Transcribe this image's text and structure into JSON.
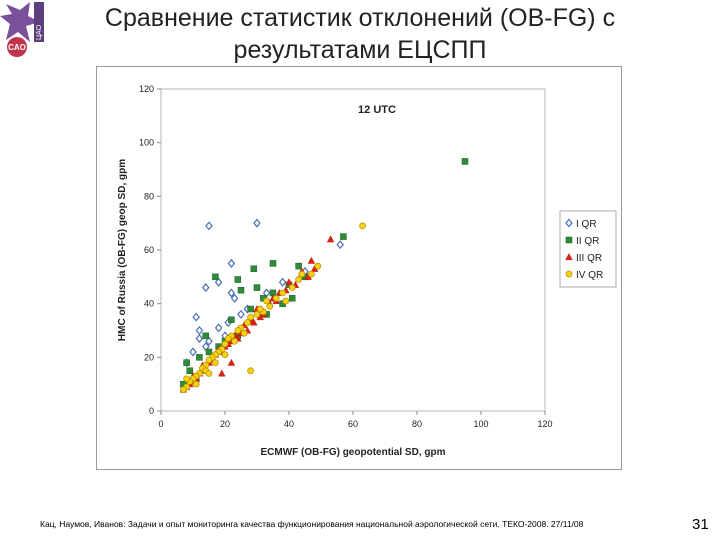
{
  "slide": {
    "title_line1": "Сравнение статистик отклонений (OB-FG) с",
    "title_line2": "результатами ЕЦСПП",
    "logo_text": "CAO",
    "logo_side_text": "ЦАО",
    "footer": "Кац, Наумов, Иванов: Задачи и опыт мониторинга качества функционирования национальной аэрологической сети. ТЕКО-2008. 27/11/08",
    "page_number": "31"
  },
  "colors": {
    "series_I": "#4a6fb8",
    "series_II": "#2e8b3a",
    "series_III": "#e02010",
    "series_IV": "#f2d214",
    "logo_primary": "#7a4f9c",
    "logo_accent": "#c0334d"
  },
  "chart_data": {
    "type": "scatter",
    "title": "12 UTC",
    "xlabel": "ECMWF (OB-FG) geopotential SD, gpm",
    "ylabel": "HMC of Russia (OB-FG) geop SD, gpm",
    "xlim": [
      0,
      120
    ],
    "ylim": [
      0,
      120
    ],
    "xticks": [
      "0",
      "20",
      "40",
      "60",
      "80",
      "100",
      "120"
    ],
    "yticks": [
      "0",
      "20",
      "40",
      "60",
      "80",
      "100",
      "120"
    ],
    "grid": false,
    "legend_position": "right",
    "series": [
      {
        "name": "I QR",
        "marker": "diamond",
        "color": "#4a6fb8",
        "points": [
          [
            15,
            69
          ],
          [
            30,
            70
          ],
          [
            22,
            55
          ],
          [
            14,
            46
          ],
          [
            18,
            48
          ],
          [
            22,
            44
          ],
          [
            11,
            35
          ],
          [
            12,
            30
          ],
          [
            15,
            26
          ],
          [
            18,
            31
          ],
          [
            20,
            28
          ],
          [
            25,
            36
          ],
          [
            27,
            38
          ],
          [
            33,
            44
          ],
          [
            38,
            48
          ],
          [
            45,
            52
          ],
          [
            56,
            62
          ],
          [
            10,
            22
          ],
          [
            14,
            24
          ],
          [
            23,
            42
          ],
          [
            21,
            33
          ],
          [
            28,
            34
          ],
          [
            8,
            18
          ],
          [
            12,
            27
          ]
        ]
      },
      {
        "name": "II QR",
        "marker": "square",
        "color": "#2e8b3a",
        "points": [
          [
            95,
            93
          ],
          [
            57,
            65
          ],
          [
            35,
            55
          ],
          [
            43,
            54
          ],
          [
            29,
            53
          ],
          [
            24,
            49
          ],
          [
            17,
            50
          ],
          [
            25,
            45
          ],
          [
            40,
            47
          ],
          [
            30,
            46
          ],
          [
            35,
            44
          ],
          [
            28,
            38
          ],
          [
            33,
            36
          ],
          [
            8,
            18
          ],
          [
            9,
            15
          ],
          [
            12,
            20
          ],
          [
            15,
            22
          ],
          [
            18,
            24
          ],
          [
            20,
            26
          ],
          [
            24,
            28
          ],
          [
            38,
            40
          ],
          [
            45,
            50
          ],
          [
            11,
            12
          ],
          [
            7,
            10
          ],
          [
            22,
            34
          ],
          [
            32,
            42
          ],
          [
            14,
            28
          ],
          [
            41,
            42
          ]
        ]
      },
      {
        "name": "III QR",
        "marker": "triangle",
        "color": "#e02010",
        "points": [
          [
            53,
            64
          ],
          [
            47,
            56
          ],
          [
            48,
            53
          ],
          [
            44,
            52
          ],
          [
            46,
            50
          ],
          [
            40,
            48
          ],
          [
            37,
            44
          ],
          [
            35,
            42
          ],
          [
            34,
            40
          ],
          [
            30,
            38
          ],
          [
            32,
            36
          ],
          [
            28,
            34
          ],
          [
            26,
            32
          ],
          [
            27,
            30
          ],
          [
            25,
            29
          ],
          [
            23,
            28
          ],
          [
            22,
            26
          ],
          [
            20,
            24
          ],
          [
            19,
            22
          ],
          [
            17,
            21
          ],
          [
            16,
            19
          ],
          [
            15,
            18
          ],
          [
            14,
            16
          ],
          [
            13,
            15
          ],
          [
            12,
            14
          ],
          [
            11,
            12
          ],
          [
            10,
            11
          ],
          [
            9,
            10
          ],
          [
            8,
            9
          ],
          [
            18,
            23
          ],
          [
            21,
            25
          ],
          [
            24,
            27
          ],
          [
            29,
            33
          ],
          [
            31,
            35
          ],
          [
            36,
            41
          ],
          [
            39,
            45
          ],
          [
            42,
            47
          ],
          [
            13,
            17
          ],
          [
            16,
            20
          ],
          [
            19,
            14
          ],
          [
            22,
            18
          ],
          [
            7,
            8
          ],
          [
            10,
            13
          ]
        ]
      },
      {
        "name": "IV QR",
        "marker": "circle",
        "color": "#f2d214",
        "points": [
          [
            63,
            69
          ],
          [
            49,
            54
          ],
          [
            47,
            51
          ],
          [
            43,
            49
          ],
          [
            41,
            46
          ],
          [
            38,
            44
          ],
          [
            36,
            42
          ],
          [
            34,
            39
          ],
          [
            32,
            37
          ],
          [
            30,
            36
          ],
          [
            28,
            35
          ],
          [
            27,
            33
          ],
          [
            25,
            31
          ],
          [
            24,
            30
          ],
          [
            22,
            28
          ],
          [
            21,
            27
          ],
          [
            20,
            25
          ],
          [
            19,
            23
          ],
          [
            18,
            22
          ],
          [
            17,
            21
          ],
          [
            16,
            20
          ],
          [
            15,
            19
          ],
          [
            14,
            17
          ],
          [
            13,
            16
          ],
          [
            12,
            14
          ],
          [
            11,
            13
          ],
          [
            10,
            12
          ],
          [
            9,
            11
          ],
          [
            8,
            9
          ],
          [
            7,
            8
          ],
          [
            28,
            15
          ],
          [
            33,
            41
          ],
          [
            26,
            29
          ],
          [
            23,
            26
          ],
          [
            17,
            18
          ],
          [
            14,
            15
          ],
          [
            11,
            10
          ],
          [
            20,
            21
          ],
          [
            31,
            38
          ],
          [
            39,
            41
          ],
          [
            44,
            51
          ],
          [
            8,
            12
          ],
          [
            15,
            14
          ]
        ]
      }
    ]
  }
}
